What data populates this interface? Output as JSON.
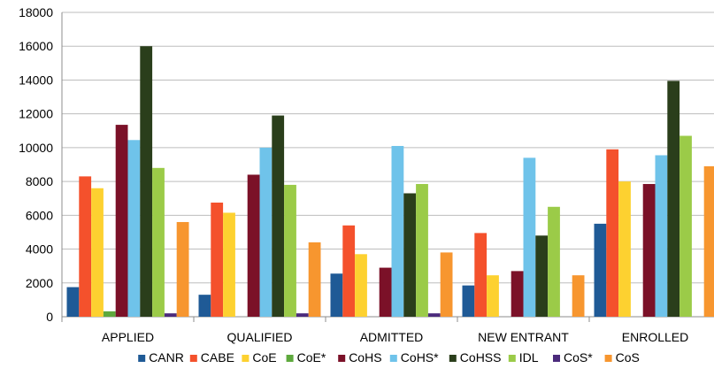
{
  "chart_data": {
    "type": "bar",
    "title": "",
    "xlabel": "",
    "ylabel": "",
    "ylim": [
      0,
      18000
    ],
    "yticks": [
      0,
      2000,
      4000,
      6000,
      8000,
      10000,
      12000,
      14000,
      16000,
      18000
    ],
    "grid": true,
    "legend_position": "bottom",
    "categories": [
      "APPLIED",
      "QUALIFIED",
      "ADMITTED",
      "NEW ENTRANT",
      "ENROLLED"
    ],
    "series": [
      {
        "name": "CANR",
        "color": "#1f5a96",
        "values": [
          1750,
          1300,
          2550,
          1850,
          5500
        ]
      },
      {
        "name": "CABE",
        "color": "#f4512c",
        "values": [
          8300,
          6750,
          5400,
          4950,
          9900
        ]
      },
      {
        "name": "CoE",
        "color": "#fdd130",
        "values": [
          7600,
          6150,
          3700,
          2450,
          8000
        ]
      },
      {
        "name": "CoE*",
        "color": "#5ea93d",
        "values": [
          320,
          0,
          0,
          0,
          0
        ]
      },
      {
        "name": "CoHS",
        "color": "#7b1128",
        "values": [
          11350,
          8400,
          2900,
          2700,
          7850
        ]
      },
      {
        "name": "CoHS*",
        "color": "#6fc3ea",
        "values": [
          10450,
          10000,
          10100,
          9400,
          9550
        ]
      },
      {
        "name": "CoHSS",
        "color": "#2a3e1b",
        "values": [
          16000,
          11900,
          7300,
          4800,
          13950
        ]
      },
      {
        "name": "IDL",
        "color": "#9bcb48",
        "values": [
          8800,
          7800,
          7850,
          6500,
          10700
        ]
      },
      {
        "name": "CoS*",
        "color": "#4b2a7c",
        "values": [
          200,
          200,
          200,
          0,
          0
        ]
      },
      {
        "name": "CoS",
        "color": "#f7962f",
        "values": [
          5600,
          4400,
          3800,
          2450,
          8900
        ]
      }
    ]
  }
}
